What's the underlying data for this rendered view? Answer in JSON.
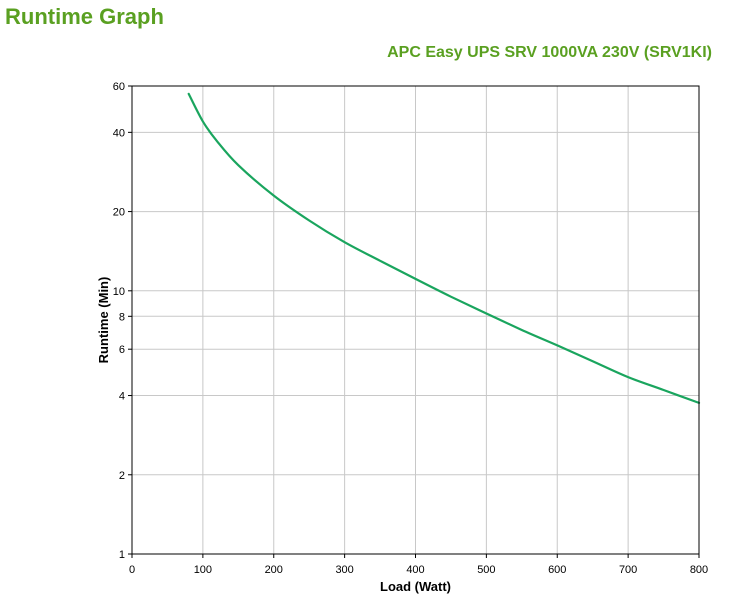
{
  "page": {
    "title": "Runtime Graph"
  },
  "chart_data": {
    "type": "line",
    "title": "APC Easy UPS SRV 1000VA 230V (SRV1KI)",
    "xlabel": "Load (Watt)",
    "ylabel": "Runtime (Min)",
    "xlim": [
      0,
      800
    ],
    "ylim": [
      1,
      60
    ],
    "y_scale": "log",
    "grid": true,
    "x_ticks": [
      0,
      100,
      200,
      300,
      400,
      500,
      600,
      700,
      800
    ],
    "y_ticks": [
      1,
      2,
      4,
      6,
      8,
      10,
      20,
      40,
      60
    ],
    "series": [
      {
        "color": "#1aa55e",
        "x": [
          80,
          100,
          120,
          150,
          200,
          250,
          300,
          350,
          400,
          450,
          500,
          550,
          600,
          650,
          700,
          750,
          800
        ],
        "y": [
          56,
          44,
          37,
          30,
          23,
          18.5,
          15.3,
          13,
          11.1,
          9.5,
          8.2,
          7.1,
          6.2,
          5.4,
          4.7,
          4.2,
          3.75
        ]
      }
    ]
  }
}
